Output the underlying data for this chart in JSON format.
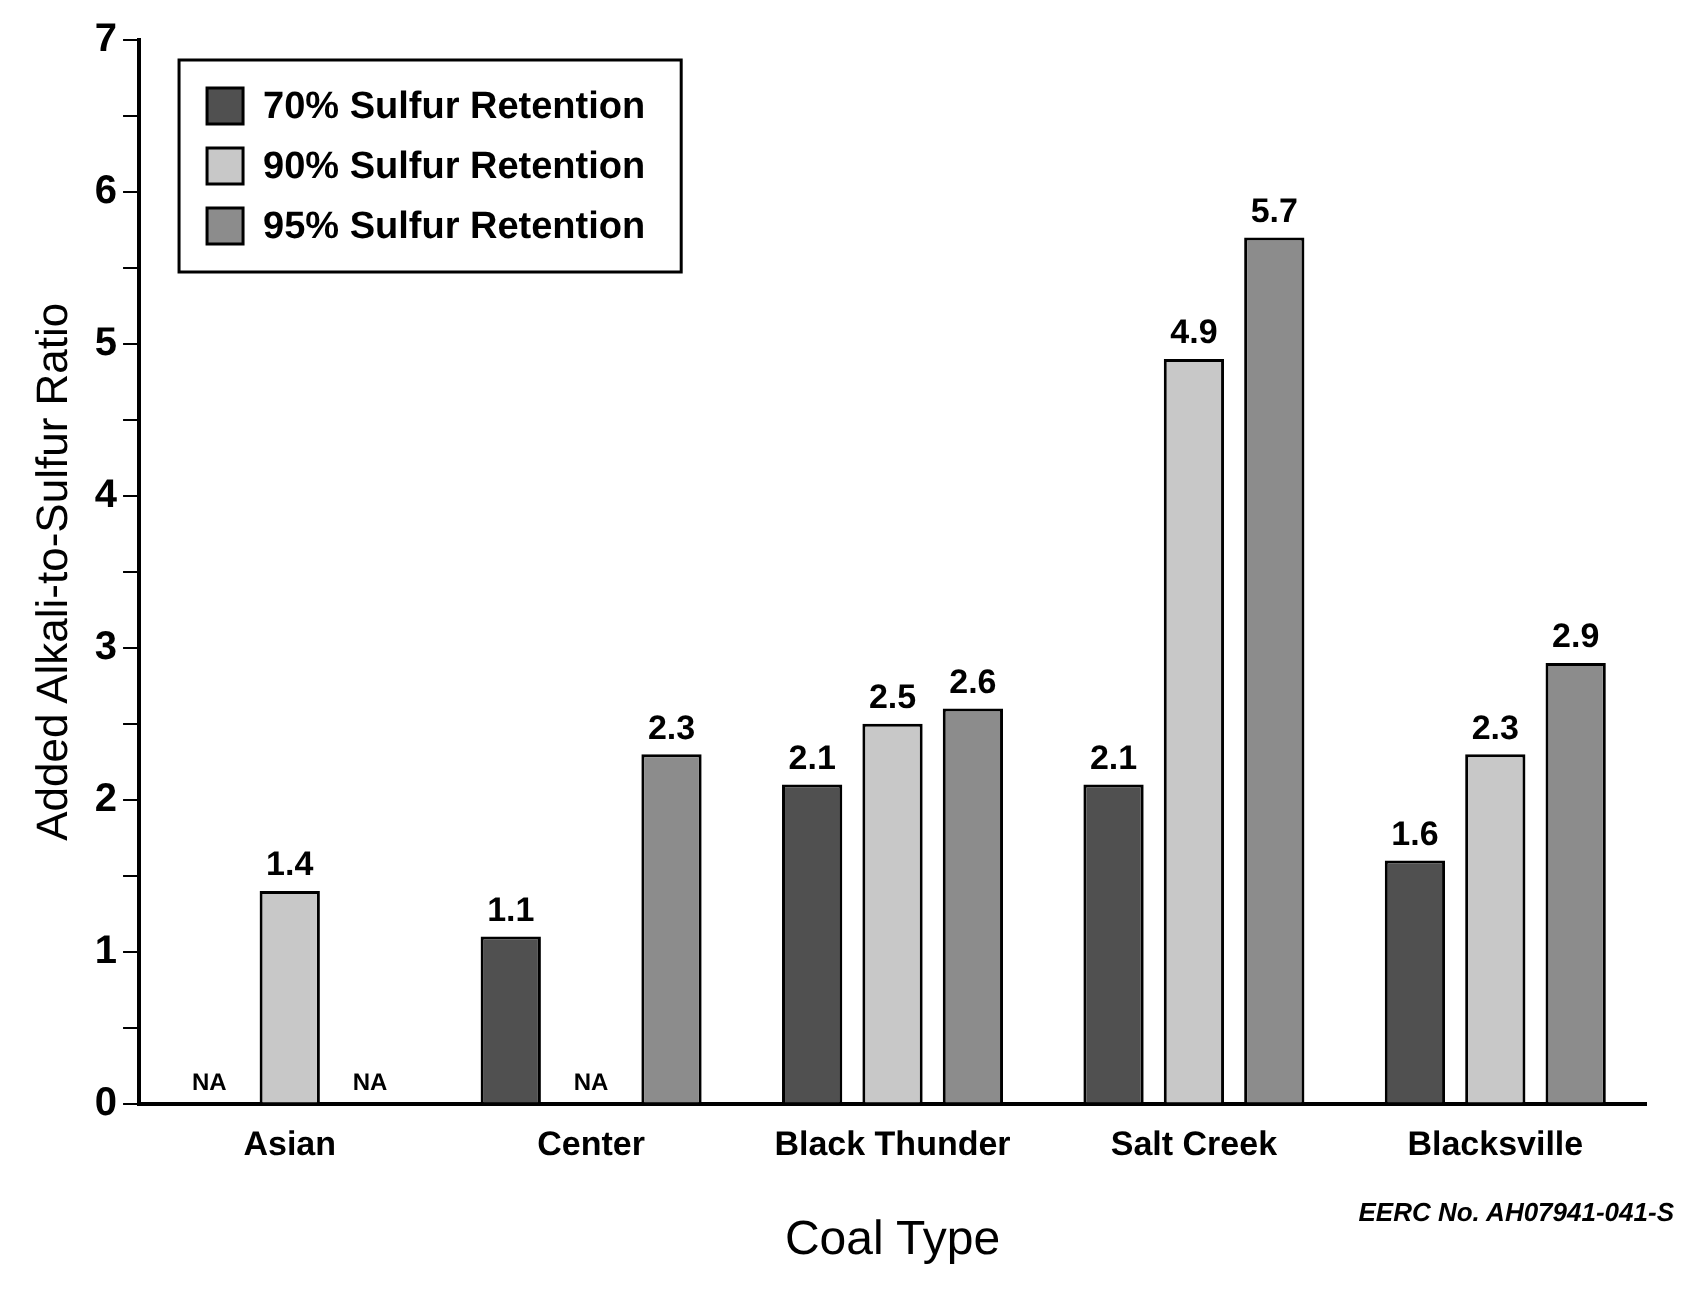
{
  "chart_data": {
    "type": "bar",
    "xlabel": "Coal Type",
    "ylabel": "Added Alkali-to-Sulfur Ratio",
    "categories": [
      "Asian",
      "Center",
      "Black Thunder",
      "Salt Creek",
      "Blacksville"
    ],
    "series": [
      {
        "name": "70% Sulfur Retention",
        "color": "#505050",
        "values": [
          null,
          1.1,
          2.1,
          2.1,
          1.6
        ],
        "value_labels": [
          "NA",
          "1.1",
          "2.1",
          "2.1",
          "1.6"
        ]
      },
      {
        "name": "90% Sulfur Retention",
        "color": "#c8c8c8",
        "values": [
          1.4,
          null,
          2.5,
          4.9,
          2.3
        ],
        "value_labels": [
          "1.4",
          "NA",
          "2.5",
          "4.9",
          "2.3"
        ]
      },
      {
        "name": "95% Sulfur Retention",
        "color": "#8c8c8c",
        "values": [
          null,
          2.3,
          2.6,
          5.7,
          2.9
        ],
        "value_labels": [
          "NA",
          "2.3",
          "2.6",
          "5.7",
          "2.9"
        ]
      }
    ],
    "ylim": [
      0,
      7
    ],
    "yticks": [
      0,
      {
        "value": 0.5,
        "label": null
      },
      1,
      {
        "value": 1.5,
        "label": null
      },
      2,
      {
        "value": 2.5,
        "label": null
      },
      3,
      {
        "value": 3.5,
        "label": null
      },
      4,
      {
        "value": 4.5,
        "label": null
      },
      5,
      {
        "value": 5.5,
        "label": null
      },
      6,
      {
        "value": 6.5,
        "label": null
      },
      7
    ],
    "grid": false,
    "legend": "top left",
    "annotations": [
      "EERC No. AH07941-041-S"
    ]
  }
}
